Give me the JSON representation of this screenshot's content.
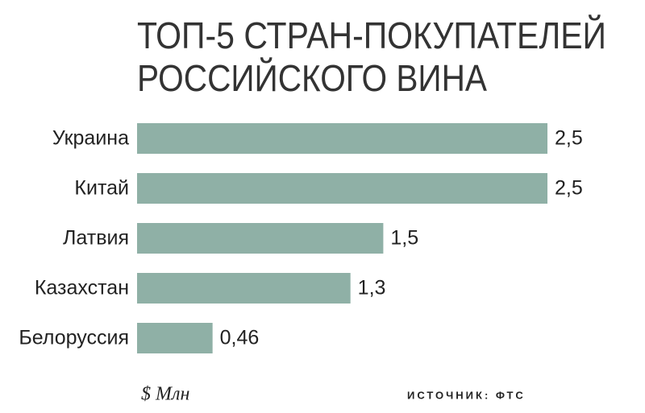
{
  "chart_data": {
    "type": "bar",
    "orientation": "horizontal",
    "title": [
      "ТОП-5 СТРАН-ПОКУПАТЕЛЕЙ",
      "РОССИЙСКОГО ВИНА"
    ],
    "categories": [
      "Украина",
      "Китай",
      "Латвия",
      "Казахстан",
      "Белоруссия"
    ],
    "values": [
      2.5,
      2.5,
      1.5,
      1.3,
      0.46
    ],
    "value_labels": [
      "2,5",
      "2,5",
      "1,5",
      "1,3",
      "0,46"
    ],
    "color": "#8fb0a6",
    "unit": "$ Млн",
    "source": "ИСТОЧНИК: ФТС"
  }
}
